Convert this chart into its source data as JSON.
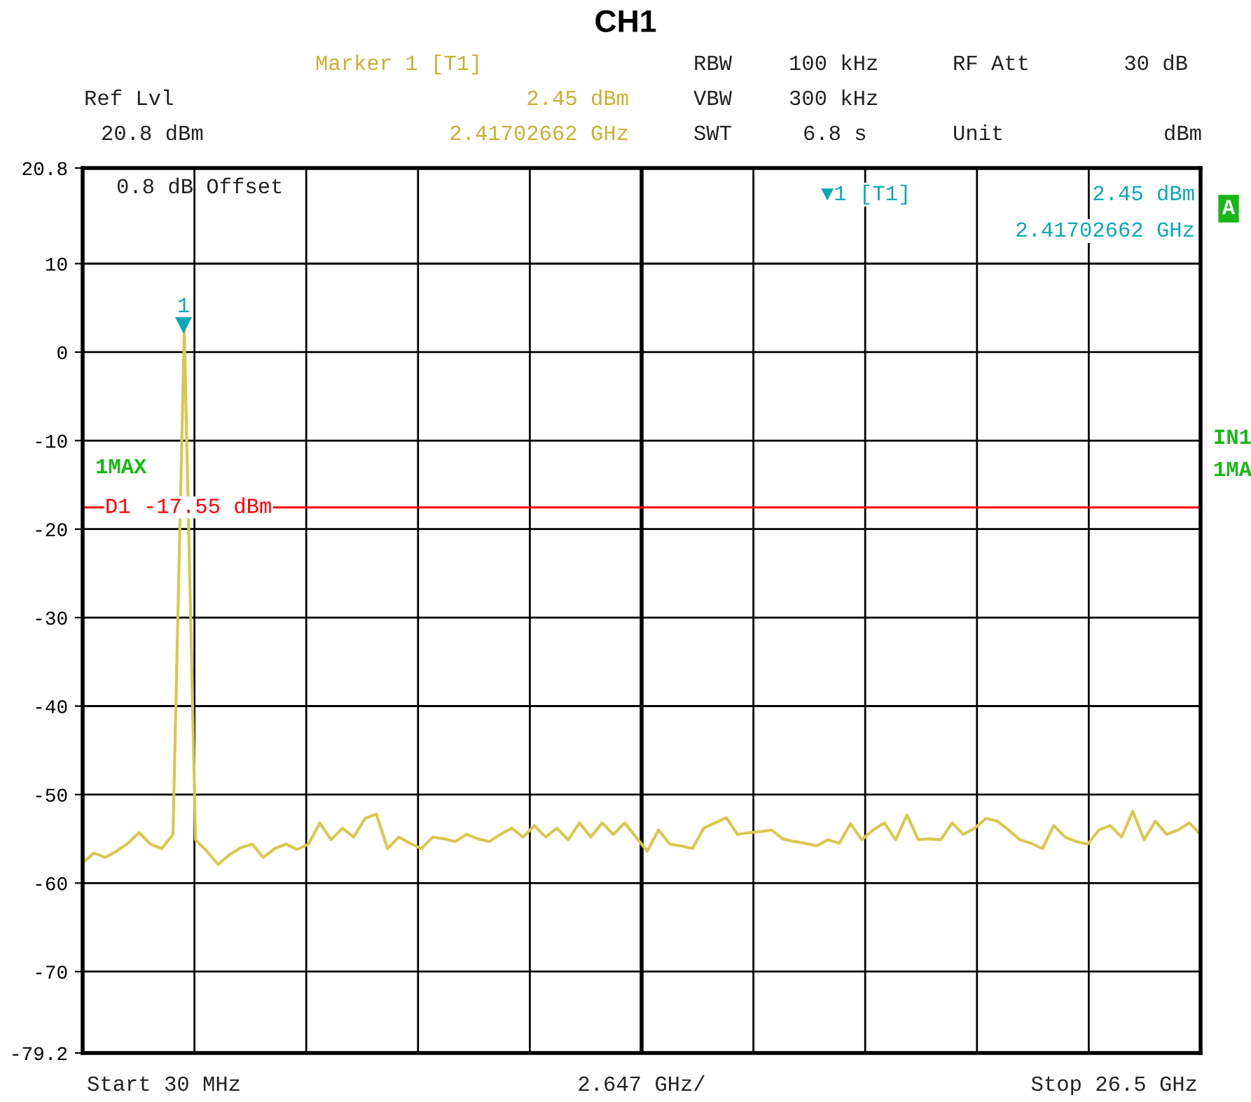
{
  "chart_data": {
    "type": "line",
    "title": "CH1",
    "categories": [
      null,
      null,
      null,
      null,
      null,
      null,
      null,
      null,
      null,
      null,
      null,
      null,
      null,
      null,
      null,
      null,
      null,
      null,
      null,
      null,
      null,
      null,
      null,
      null,
      null,
      null,
      null,
      null,
      null,
      null,
      null,
      null,
      null,
      null,
      null,
      null,
      null,
      null,
      null,
      null,
      null,
      null,
      null,
      null,
      null,
      null,
      null,
      null,
      null,
      null,
      null,
      null,
      null,
      null,
      null,
      null,
      null,
      null,
      null,
      null,
      null,
      null,
      null,
      null,
      null,
      null,
      null,
      null,
      null,
      null,
      null,
      null,
      null,
      null,
      null,
      null,
      null,
      null,
      null,
      null,
      null,
      null,
      null,
      null,
      null,
      null,
      null,
      null,
      null,
      null,
      null,
      null,
      null,
      null,
      null,
      null,
      null,
      null,
      null,
      null
    ],
    "ylim": [
      -79.2,
      20.8
    ],
    "yticks": [
      20.8,
      10,
      0,
      -10,
      -20,
      -30,
      -40,
      -50,
      -60,
      -70,
      -79.2
    ],
    "tick_labels": "y",
    "grid": true,
    "marker": "none",
    "line_style": "solid",
    "series": [
      {
        "color": "#d8c850",
        "values": [
          -57.7,
          -56.6,
          -57.1,
          -56.4,
          -55.5,
          -54.3,
          -55.6,
          -56.1,
          -54.5,
          2.45,
          -55.1,
          -56.4,
          -57.9,
          -56.8,
          -56.0,
          -55.6,
          -57.1,
          -56.1,
          -55.6,
          -56.2,
          -55.6,
          -53.2,
          -55.1,
          -53.8,
          -54.8,
          -52.7,
          -52.2,
          -56.1,
          -54.8,
          -55.5,
          -56.1,
          -54.8,
          -55.0,
          -55.3,
          -54.5,
          -55.0,
          -55.3,
          -54.5,
          -53.8,
          -54.8,
          -53.5,
          -54.8,
          -53.8,
          -55.1,
          -53.2,
          -54.8,
          -53.2,
          -54.5,
          -53.2,
          -54.8,
          -56.4,
          -54.0,
          -55.6,
          -55.8,
          -56.1,
          -53.8,
          -53.2,
          -52.6,
          -54.5,
          -54.3,
          -54.2,
          -54.0,
          -55.0,
          -55.3,
          -55.5,
          -55.8,
          -55.1,
          -55.5,
          -53.3,
          -55.1,
          -54.0,
          -53.2,
          -55.1,
          -52.3,
          -55.1,
          -55.0,
          -55.1,
          -53.2,
          -54.5,
          -53.8,
          -52.7,
          -53.0,
          -54.0,
          -55.1,
          -55.5,
          -56.1,
          -53.5,
          -54.8,
          -55.3,
          -55.6,
          -54.0,
          -53.5,
          -54.8,
          -51.9,
          -55.1,
          -53.0,
          -54.5,
          -54.0,
          -53.2,
          -54.5
        ]
      }
    ],
    "ref_lines": [
      {
        "axis": "y",
        "value": -17.55,
        "label": "D1 -17.55 dBm",
        "color": "#ff0000",
        "line_style": "solid"
      }
    ],
    "annotations": [
      "Marker 1 [T1]",
      "2.45 dBm",
      "2.41702662 GHz",
      "RBW",
      "100 kHz",
      "RF Att",
      "30 dB",
      "Ref Lvl",
      "VBW",
      "300 kHz",
      "20.8 dBm",
      "SWT",
      "6.8 s",
      "Unit",
      "dBm",
      "0.8 dB Offset",
      "▼1 [T1]",
      "2.45 dBm",
      "2.41702662 GHz",
      "A",
      "1MAX",
      "IN1",
      "1MA",
      "Start 30 MHz",
      "2.647 GHz/",
      "Stop 26.5 GHz",
      "1"
    ]
  }
}
